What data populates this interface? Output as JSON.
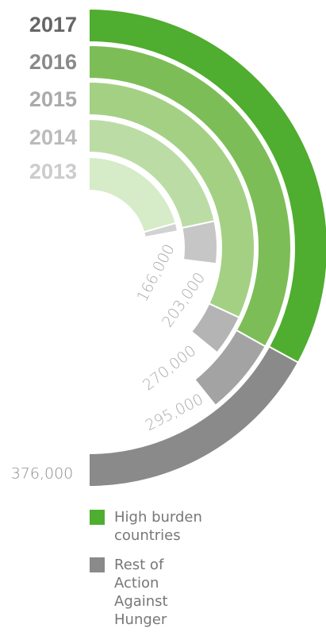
{
  "chart_data": {
    "type": "radial-stacked-bar",
    "categories": [
      "2013",
      "2014",
      "2015",
      "2016",
      "2017"
    ],
    "series": [
      {
        "name": "High burden countries",
        "colors": [
          "#d6ebc8",
          "#bcdca5",
          "#a4d084",
          "#7dbd57",
          "#4fad2f"
        ],
        "values": [
          155000,
          163000,
          240000,
          249000,
          248000
        ]
      },
      {
        "name": "Rest of Action Against Hunger",
        "colors": [
          "#d2d2d2",
          "#c6c6c6",
          "#b4b4b4",
          "#a3a3a3",
          "#8a8a8a"
        ],
        "values": [
          11000,
          40000,
          30000,
          46000,
          128000
        ]
      }
    ],
    "total_labels": [
      "166,000",
      "203,000",
      "270,000",
      "295,000",
      "376,000"
    ],
    "xlim": [
      0,
      376000
    ]
  }
}
